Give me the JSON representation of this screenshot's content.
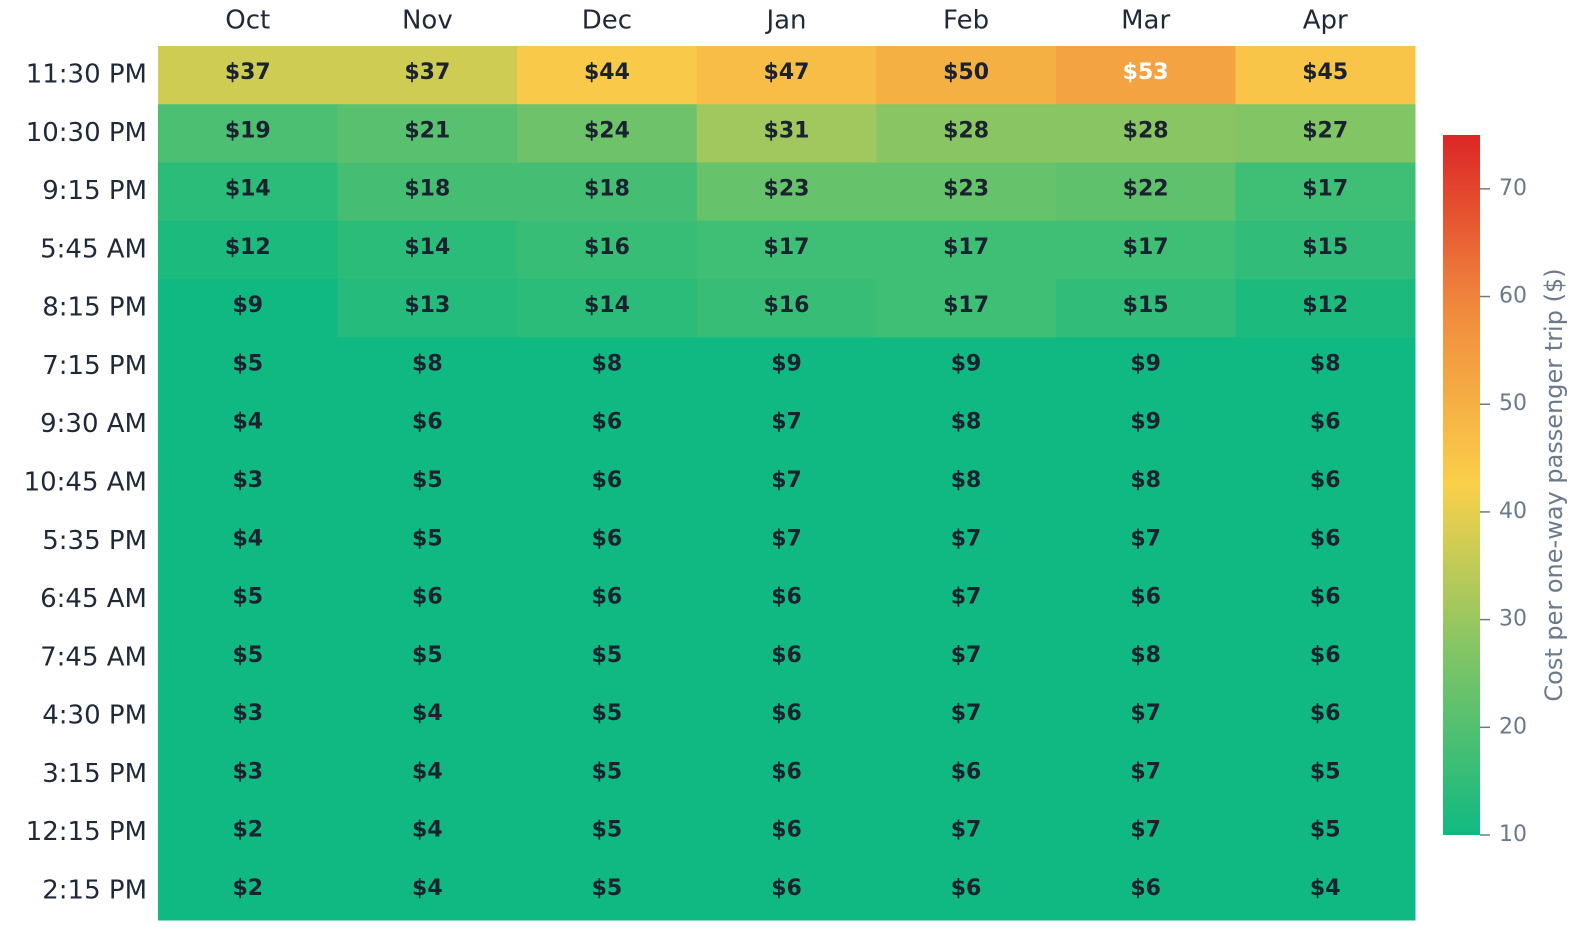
{
  "chart_data": {
    "type": "heatmap",
    "x": [
      "Oct",
      "Nov",
      "Dec",
      "Jan",
      "Feb",
      "Mar",
      "Apr"
    ],
    "y": [
      "11:30 PM",
      "10:30 PM",
      "9:15 PM",
      "5:45 AM",
      "8:15 PM",
      "7:15 PM",
      "9:30 AM",
      "10:45 AM",
      "5:35 PM",
      "6:45 AM",
      "7:45 AM",
      "4:30 PM",
      "3:15 PM",
      "12:15 PM",
      "2:15 PM"
    ],
    "values": [
      [
        37,
        37,
        44,
        47,
        50,
        53,
        45
      ],
      [
        19,
        21,
        24,
        31,
        28,
        28,
        27
      ],
      [
        14,
        18,
        18,
        23,
        23,
        22,
        17
      ],
      [
        12,
        14,
        16,
        17,
        17,
        17,
        15
      ],
      [
        9,
        13,
        14,
        16,
        17,
        15,
        12
      ],
      [
        5,
        8,
        8,
        9,
        9,
        9,
        8
      ],
      [
        4,
        6,
        6,
        7,
        8,
        9,
        6
      ],
      [
        3,
        5,
        6,
        7,
        8,
        8,
        6
      ],
      [
        4,
        5,
        6,
        7,
        7,
        7,
        6
      ],
      [
        5,
        6,
        6,
        6,
        7,
        6,
        6
      ],
      [
        5,
        5,
        5,
        6,
        7,
        8,
        6
      ],
      [
        3,
        4,
        5,
        6,
        7,
        7,
        6
      ],
      [
        3,
        4,
        5,
        6,
        6,
        7,
        5
      ],
      [
        2,
        4,
        5,
        6,
        7,
        7,
        5
      ],
      [
        2,
        4,
        5,
        6,
        6,
        6,
        4
      ]
    ],
    "value_labels": [
      [
        "$37",
        "$37",
        "$44",
        "$47",
        "$50",
        "$53",
        "$45"
      ],
      [
        "$19",
        "$21",
        "$24",
        "$31",
        "$28",
        "$28",
        "$27"
      ],
      [
        "$14",
        "$18",
        "$18",
        "$23",
        "$23",
        "$22",
        "$17"
      ],
      [
        "$12",
        "$14",
        "$16",
        "$17",
        "$17",
        "$17",
        "$15"
      ],
      [
        "$9",
        "$13",
        "$14",
        "$16",
        "$17",
        "$15",
        "$12"
      ],
      [
        "$5",
        "$8",
        "$8",
        "$9",
        "$9",
        "$9",
        "$8"
      ],
      [
        "$4",
        "$6",
        "$6",
        "$7",
        "$8",
        "$9",
        "$6"
      ],
      [
        "$3",
        "$5",
        "$6",
        "$7",
        "$8",
        "$8",
        "$6"
      ],
      [
        "$4",
        "$5",
        "$6",
        "$7",
        "$7",
        "$7",
        "$6"
      ],
      [
        "$5",
        "$6",
        "$6",
        "$6",
        "$7",
        "$6",
        "$6"
      ],
      [
        "$5",
        "$5",
        "$5",
        "$6",
        "$7",
        "$8",
        "$6"
      ],
      [
        "$3",
        "$4",
        "$5",
        "$6",
        "$7",
        "$7",
        "$6"
      ],
      [
        "$3",
        "$4",
        "$5",
        "$6",
        "$6",
        "$7",
        "$5"
      ],
      [
        "$2",
        "$4",
        "$5",
        "$6",
        "$7",
        "$7",
        "$5"
      ],
      [
        "$2",
        "$4",
        "$5",
        "$6",
        "$6",
        "$6",
        "$4"
      ]
    ],
    "colorscale": [
      "#10b981",
      "#7cc466",
      "#fad04a",
      "#f08a3e",
      "#dc2626"
    ],
    "zlim": [
      10,
      75
    ],
    "zticks": [
      10,
      20,
      30,
      40,
      50,
      60,
      70
    ],
    "colorbar_title": "Cost per one-way passenger trip ($)"
  }
}
